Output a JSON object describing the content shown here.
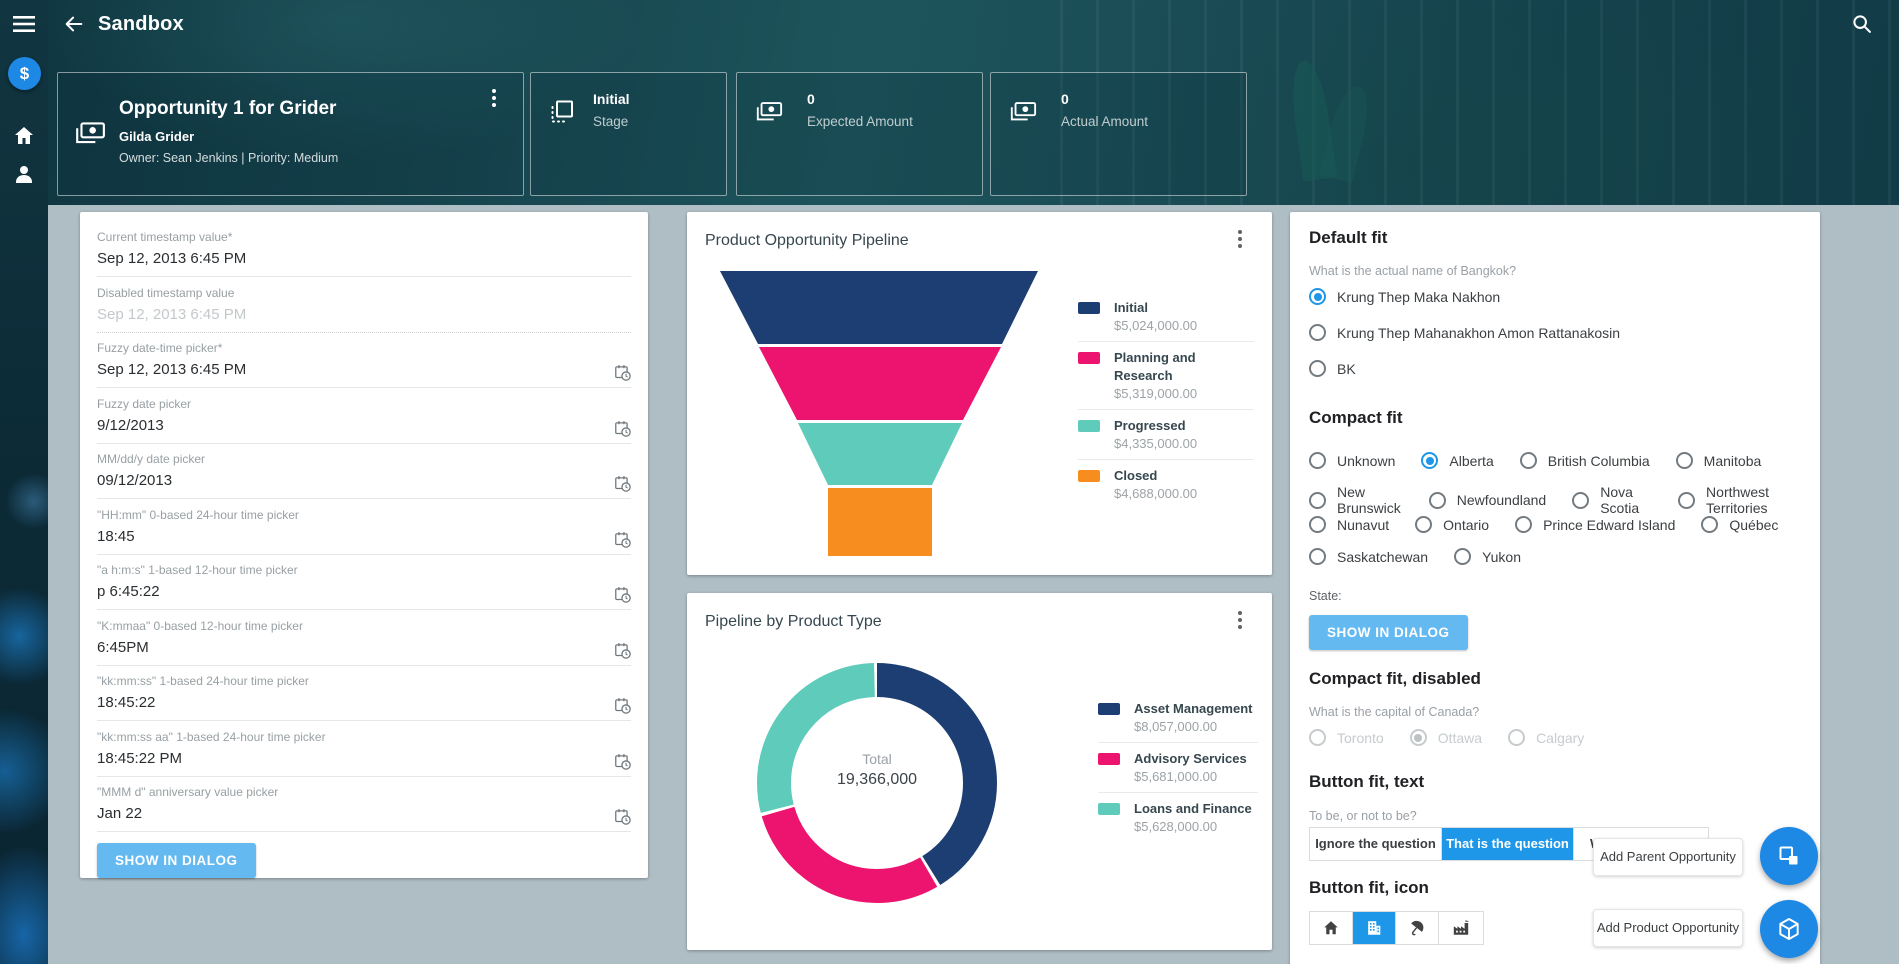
{
  "topbar": {
    "title": "Sandbox"
  },
  "sidebar": {
    "dollar_symbol": "$"
  },
  "header": {
    "opportunity": {
      "title": "Opportunity 1 for Grider",
      "subtitle": "Gilda Grider",
      "meta": "Owner: Sean Jenkins | Priority: Medium"
    },
    "stats": [
      {
        "value": "Initial",
        "label": "Stage"
      },
      {
        "value": "0",
        "label": "Expected Amount"
      },
      {
        "value": "0",
        "label": "Actual Amount"
      }
    ]
  },
  "form": {
    "fields": [
      {
        "label": "Current timestamp value*",
        "value": "Sep 12, 2013 6:45 PM",
        "has_icon": false,
        "disabled": false
      },
      {
        "label": "Disabled timestamp value",
        "value": "Sep 12, 2013 6:45 PM",
        "has_icon": false,
        "disabled": true
      },
      {
        "label": "Fuzzy date-time picker*",
        "value": "Sep 12, 2013 6:45 PM",
        "has_icon": true,
        "disabled": false
      },
      {
        "label": "Fuzzy date picker",
        "value": "9/12/2013",
        "has_icon": true,
        "disabled": false
      },
      {
        "label": "MM/dd/y date picker",
        "value": "09/12/2013",
        "has_icon": true,
        "disabled": false
      },
      {
        "label": "\"HH:mm\" 0-based 24-hour time picker",
        "value": "18:45",
        "has_icon": true,
        "disabled": false
      },
      {
        "label": "\"a h:m:s\" 1-based 12-hour time picker",
        "value": "p 6:45:22",
        "has_icon": true,
        "disabled": false
      },
      {
        "label": "\"K:mmaa\" 0-based 12-hour time picker",
        "value": "6:45PM",
        "has_icon": true,
        "disabled": false
      },
      {
        "label": "\"kk:mm:ss\" 1-based 24-hour time picker",
        "value": "18:45:22",
        "has_icon": true,
        "disabled": false
      },
      {
        "label": "\"kk:mm:ss aa\" 1-based 24-hour time picker",
        "value": "18:45:22 PM",
        "has_icon": true,
        "disabled": false
      },
      {
        "label": "\"MMM d\" anniversary value picker",
        "value": "Jan 22",
        "has_icon": true,
        "disabled": false
      }
    ],
    "show_in_dialog": "SHOW IN DIALOG"
  },
  "funnel_card": {
    "title": "Product Opportunity Pipeline",
    "legend": [
      {
        "name": "Initial",
        "value": "$5,024,000.00",
        "color": "#1D3E72"
      },
      {
        "name": "Planning and Research",
        "value": "$5,319,000.00",
        "color": "#EC146E"
      },
      {
        "name": "Progressed",
        "value": "$4,335,000.00",
        "color": "#5FCBBB"
      },
      {
        "name": "Closed",
        "value": "$4,688,000.00",
        "color": "#F78D1E"
      }
    ]
  },
  "donut_card": {
    "title": "Pipeline by Product Type",
    "center_label": "Total",
    "center_value": "19,366,000",
    "legend": [
      {
        "name": "Asset Management",
        "value": "$8,057,000.00",
        "color": "#1D3E72"
      },
      {
        "name": "Advisory Services",
        "value": "$5,681,000.00",
        "color": "#EC146E"
      },
      {
        "name": "Loans and Finance",
        "value": "$5,628,000.00",
        "color": "#5FCBBB"
      }
    ]
  },
  "panel": {
    "default_fit": {
      "heading": "Default fit",
      "question": "What is the actual name of Bangkok?",
      "options": [
        {
          "label": "Krung Thep Maka Nakhon",
          "selected": true
        },
        {
          "label": "Krung Thep Mahanakhon Amon Rattanakosin",
          "selected": false
        },
        {
          "label": "BK",
          "selected": false
        }
      ]
    },
    "compact_fit": {
      "heading": "Compact fit",
      "rows": [
        [
          "Unknown",
          "Alberta",
          "British Columbia",
          "Manitoba"
        ],
        [
          "New Brunswick",
          "Newfoundland",
          "Nova Scotia",
          "Northwest Territories"
        ],
        [
          "Nunavut",
          "Ontario",
          "Prince Edward Island",
          "Québec"
        ],
        [
          "Saskatchewan",
          "Yukon"
        ]
      ],
      "selected": "Alberta"
    },
    "state_label": "State:",
    "show_in_dialog": "SHOW IN DIALOG",
    "compact_fit_disabled": {
      "heading": "Compact fit, disabled",
      "question": "What is the capital of Canada?",
      "options": [
        {
          "label": "Toronto",
          "selected": false
        },
        {
          "label": "Ottawa",
          "selected": true
        },
        {
          "label": "Calgary",
          "selected": false
        }
      ]
    },
    "button_fit_text": {
      "heading": "Button fit, text",
      "question": "To be, or not to be?",
      "segments": [
        {
          "label": "Ignore the question",
          "selected": false
        },
        {
          "label": "That is the question",
          "selected": true
        },
        {
          "label": "Wh",
          "selected": false
        }
      ]
    },
    "button_fit_icon": {
      "heading": "Button fit, icon",
      "selected_index": 1,
      "icons": [
        "home-icon",
        "office-building-icon",
        "beach-umbrella-icon",
        "factory-icon"
      ]
    }
  },
  "fabs": [
    {
      "tooltip": "Add Parent Opportunity",
      "icon": "parent-opportunity-icon"
    },
    {
      "tooltip": "Add Product Opportunity",
      "icon": "product-opportunity-icon"
    }
  ],
  "icons": {
    "menu-icon": "☰",
    "back-arrow-icon": "←",
    "search-icon": "⌕",
    "money-icon": "banknote",
    "stage-icon": "dashed-square",
    "calendar-clock-icon": "calendar+clock",
    "kebab-icon": "⋮",
    "dollar-icon": "$",
    "home-icon": "⌂",
    "person-icon": "👤"
  },
  "colors": {
    "accent_blue": "#1E88E5",
    "selection_blue": "#1E97E8",
    "light_blue_button": "#64B9F1",
    "navy": "#1D3E72",
    "pink": "#EC146E",
    "teal": "#5FCBBB",
    "orange": "#F78D1E",
    "content_bg": "#AFBEC5",
    "header_teal": "#16434D"
  },
  "chart_data": [
    {
      "type": "funnel",
      "title": "Product Opportunity Pipeline",
      "categories": [
        "Initial",
        "Planning and Research",
        "Progressed",
        "Closed"
      ],
      "values": [
        5024000,
        5319000,
        4335000,
        4688000
      ],
      "value_labels": [
        "$5,024,000.00",
        "$5,319,000.00",
        "$4,335,000.00",
        "$4,688,000.00"
      ],
      "colors": [
        "#1D3E72",
        "#EC146E",
        "#5FCBBB",
        "#F78D1E"
      ],
      "legend_position": "right"
    },
    {
      "type": "donut",
      "title": "Pipeline by Product Type",
      "categories": [
        "Asset Management",
        "Advisory Services",
        "Loans and Finance"
      ],
      "values": [
        8057000,
        5681000,
        5628000
      ],
      "value_labels": [
        "$8,057,000.00",
        "$5,681,000.00",
        "$5,628,000.00"
      ],
      "total_label": "Total",
      "total_value": "19,366,000",
      "colors": [
        "#1D3E72",
        "#EC146E",
        "#5FCBBB"
      ],
      "legend_position": "right"
    }
  ]
}
